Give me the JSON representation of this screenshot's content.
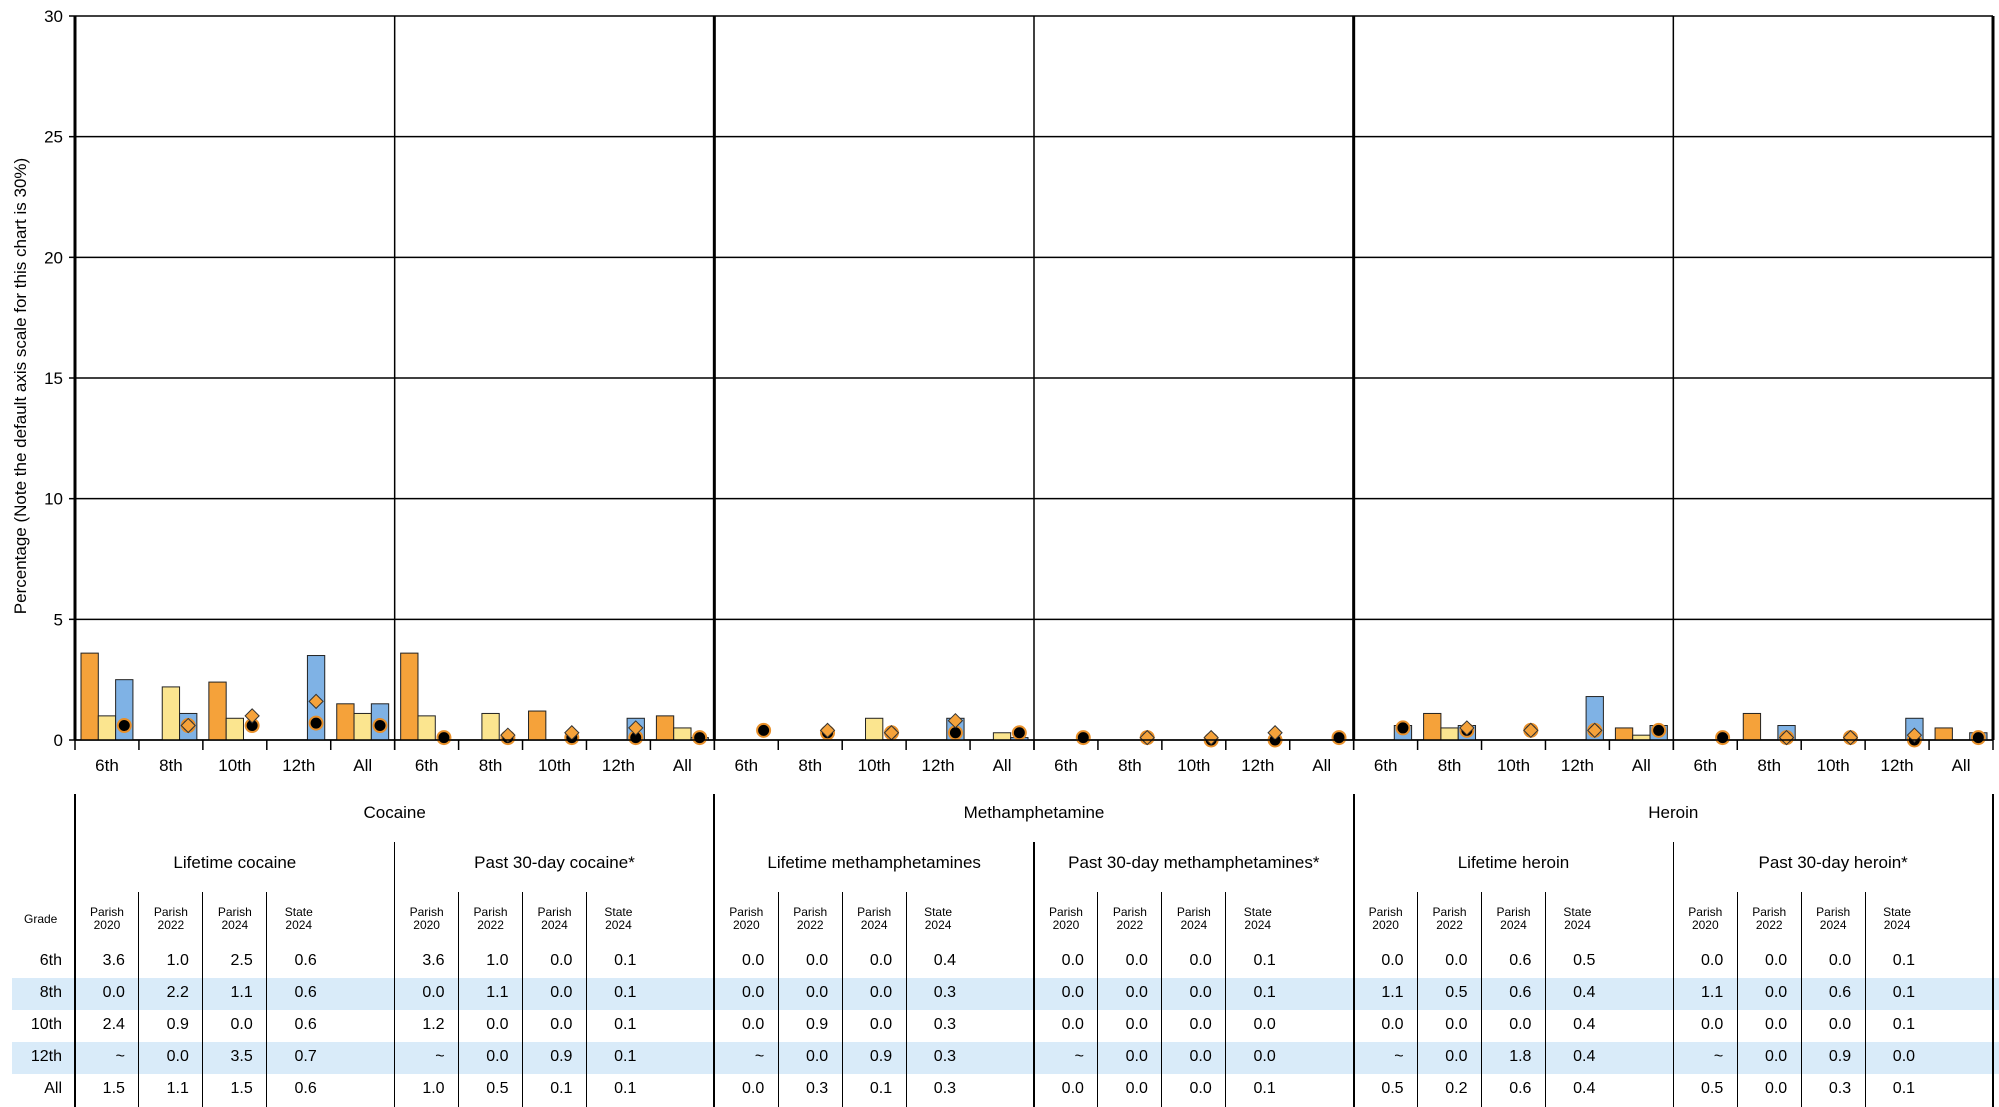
{
  "chart_data": {
    "type": "bar",
    "ylabel": "Percentage (Note the default axis scale for this chart is 30%)",
    "ylim": [
      0,
      30
    ],
    "yticks": [
      0,
      5,
      10,
      15,
      20,
      25,
      30
    ],
    "grades": [
      "6th",
      "8th",
      "10th",
      "12th",
      "All"
    ],
    "series_labels": [
      [
        "Parish",
        "2020"
      ],
      [
        "Parish",
        "2022"
      ],
      [
        "Parish",
        "2024"
      ],
      [
        "State",
        "2024"
      ]
    ],
    "series_colors": [
      "#f5a23a",
      "#fbe58f",
      "#7fb2e5",
      "#000000"
    ],
    "marker_colors": {
      "circle": "#000000",
      "diamond": "#f5a23a",
      "outline": "#e8902a"
    },
    "row_header": "Grade",
    "groups": [
      {
        "name": "Cocaine",
        "measures": [
          {
            "name": "Lifetime cocaine",
            "marker": "circle",
            "rows": [
              {
                "grade": "6th",
                "values": [
                  "3.6",
                  "1.0",
                  "2.5",
                  "0.6"
                ]
              },
              {
                "grade": "8th",
                "values": [
                  "0.0",
                  "2.2",
                  "1.1",
                  "0.6"
                ]
              },
              {
                "grade": "10th",
                "values": [
                  "2.4",
                  "0.9",
                  "0.0",
                  "0.6"
                ]
              },
              {
                "grade": "12th",
                "values": [
                  "~",
                  "0.0",
                  "3.5",
                  "0.7"
                ]
              },
              {
                "grade": "All",
                "values": [
                  "1.5",
                  "1.1",
                  "1.5",
                  "0.6"
                ]
              }
            ]
          },
          {
            "name": "Past 30-day cocaine*",
            "marker": "circle",
            "rows": [
              {
                "grade": "6th",
                "values": [
                  "3.6",
                  "1.0",
                  "0.0",
                  "0.1"
                ]
              },
              {
                "grade": "8th",
                "values": [
                  "0.0",
                  "1.1",
                  "0.0",
                  "0.1"
                ]
              },
              {
                "grade": "10th",
                "values": [
                  "1.2",
                  "0.0",
                  "0.0",
                  "0.1"
                ]
              },
              {
                "grade": "12th",
                "values": [
                  "~",
                  "0.0",
                  "0.9",
                  "0.1"
                ]
              },
              {
                "grade": "All",
                "values": [
                  "1.0",
                  "0.5",
                  "0.1",
                  "0.1"
                ]
              }
            ]
          }
        ]
      },
      {
        "name": "Methamphetamine",
        "measures": [
          {
            "name": "Lifetime methamphetamines",
            "marker": "circle",
            "rows": [
              {
                "grade": "6th",
                "values": [
                  "0.0",
                  "0.0",
                  "0.0",
                  "0.4"
                ]
              },
              {
                "grade": "8th",
                "values": [
                  "0.0",
                  "0.0",
                  "0.0",
                  "0.3"
                ]
              },
              {
                "grade": "10th",
                "values": [
                  "0.0",
                  "0.9",
                  "0.0",
                  "0.3"
                ]
              },
              {
                "grade": "12th",
                "values": [
                  "~",
                  "0.0",
                  "0.9",
                  "0.3"
                ]
              },
              {
                "grade": "All",
                "values": [
                  "0.0",
                  "0.3",
                  "0.1",
                  "0.3"
                ]
              }
            ]
          },
          {
            "name": "Past 30-day methamphetamines*",
            "marker": "circle",
            "rows": [
              {
                "grade": "6th",
                "values": [
                  "0.0",
                  "0.0",
                  "0.0",
                  "0.1"
                ]
              },
              {
                "grade": "8th",
                "values": [
                  "0.0",
                  "0.0",
                  "0.0",
                  "0.1"
                ]
              },
              {
                "grade": "10th",
                "values": [
                  "0.0",
                  "0.0",
                  "0.0",
                  "0.0"
                ]
              },
              {
                "grade": "12th",
                "values": [
                  "~",
                  "0.0",
                  "0.0",
                  "0.0"
                ]
              },
              {
                "grade": "All",
                "values": [
                  "0.0",
                  "0.0",
                  "0.0",
                  "0.1"
                ]
              }
            ]
          }
        ]
      },
      {
        "name": "Heroin",
        "measures": [
          {
            "name": "Lifetime heroin",
            "marker": "circle",
            "rows": [
              {
                "grade": "6th",
                "values": [
                  "0.0",
                  "0.0",
                  "0.6",
                  "0.5"
                ]
              },
              {
                "grade": "8th",
                "values": [
                  "1.1",
                  "0.5",
                  "0.6",
                  "0.4"
                ]
              },
              {
                "grade": "10th",
                "values": [
                  "0.0",
                  "0.0",
                  "0.0",
                  "0.4"
                ]
              },
              {
                "grade": "12th",
                "values": [
                  "~",
                  "0.0",
                  "1.8",
                  "0.4"
                ]
              },
              {
                "grade": "All",
                "values": [
                  "0.5",
                  "0.2",
                  "0.6",
                  "0.4"
                ]
              }
            ]
          },
          {
            "name": "Past 30-day heroin*",
            "marker": "circle",
            "rows": [
              {
                "grade": "6th",
                "values": [
                  "0.0",
                  "0.0",
                  "0.0",
                  "0.1"
                ]
              },
              {
                "grade": "8th",
                "values": [
                  "1.1",
                  "0.0",
                  "0.6",
                  "0.1"
                ]
              },
              {
                "grade": "10th",
                "values": [
                  "0.0",
                  "0.0",
                  "0.0",
                  "0.1"
                ]
              },
              {
                "grade": "12th",
                "values": [
                  "~",
                  "0.0",
                  "0.9",
                  "0.0"
                ]
              },
              {
                "grade": "All",
                "values": [
                  "0.5",
                  "0.0",
                  "0.3",
                  "0.1"
                ]
              }
            ]
          }
        ]
      }
    ],
    "diamond_marks": [
      {
        "group": 0,
        "measure": 0,
        "grade": "8th",
        "value": 0.6
      },
      {
        "group": 0,
        "measure": 0,
        "grade": "10th",
        "value": 1.0
      },
      {
        "group": 0,
        "measure": 0,
        "grade": "12th",
        "value": 1.6
      },
      {
        "group": 0,
        "measure": 1,
        "grade": "8th",
        "value": 0.2
      },
      {
        "group": 0,
        "measure": 1,
        "grade": "10th",
        "value": 0.3
      },
      {
        "group": 0,
        "measure": 1,
        "grade": "12th",
        "value": 0.5
      },
      {
        "group": 1,
        "measure": 0,
        "grade": "8th",
        "value": 0.4
      },
      {
        "group": 1,
        "measure": 0,
        "grade": "10th",
        "value": 0.3
      },
      {
        "group": 1,
        "measure": 0,
        "grade": "12th",
        "value": 0.8
      },
      {
        "group": 1,
        "measure": 1,
        "grade": "8th",
        "value": 0.1
      },
      {
        "group": 1,
        "measure": 1,
        "grade": "10th",
        "value": 0.1
      },
      {
        "group": 1,
        "measure": 1,
        "grade": "12th",
        "value": 0.3
      },
      {
        "group": 2,
        "measure": 0,
        "grade": "8th",
        "value": 0.5
      },
      {
        "group": 2,
        "measure": 0,
        "grade": "10th",
        "value": 0.4
      },
      {
        "group": 2,
        "measure": 0,
        "grade": "12th",
        "value": 0.4
      },
      {
        "group": 2,
        "measure": 1,
        "grade": "8th",
        "value": 0.1
      },
      {
        "group": 2,
        "measure": 1,
        "grade": "10th",
        "value": 0.1
      },
      {
        "group": 2,
        "measure": 1,
        "grade": "12th",
        "value": 0.2
      }
    ]
  }
}
